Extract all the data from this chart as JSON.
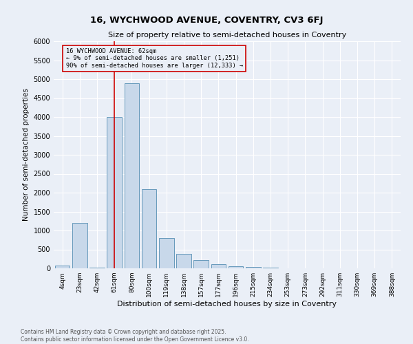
{
  "title1": "16, WYCHWOOD AVENUE, COVENTRY, CV3 6FJ",
  "title2": "Size of property relative to semi-detached houses in Coventry",
  "xlabel": "Distribution of semi-detached houses by size in Coventry",
  "ylabel": "Number of semi-detached properties",
  "bar_labels": [
    "4sqm",
    "23sqm",
    "42sqm",
    "61sqm",
    "80sqm",
    "100sqm",
    "119sqm",
    "138sqm",
    "157sqm",
    "177sqm",
    "196sqm",
    "215sqm",
    "234sqm",
    "253sqm",
    "273sqm",
    "292sqm",
    "311sqm",
    "330sqm",
    "369sqm",
    "388sqm"
  ],
  "bar_values": [
    75,
    1200,
    10,
    4000,
    4900,
    2100,
    800,
    375,
    225,
    110,
    55,
    30,
    15,
    8,
    4,
    2,
    1,
    1,
    1,
    0
  ],
  "bar_color": "#c8d8ea",
  "bar_edge_color": "#6699bb",
  "property_label": "16 WYCHWOOD AVENUE: 62sqm",
  "pct_smaller": 9,
  "pct_larger": 90,
  "n_smaller": 1251,
  "n_larger": 12333,
  "vline_x_index": 3,
  "vline_color": "#cc0000",
  "annotation_box_color": "#cc0000",
  "ylim": [
    0,
    6000
  ],
  "yticks": [
    0,
    500,
    1000,
    1500,
    2000,
    2500,
    3000,
    3500,
    4000,
    4500,
    5000,
    5500,
    6000
  ],
  "bg_color": "#eaeff7",
  "grid_color": "#ffffff",
  "footnote": "Contains HM Land Registry data © Crown copyright and database right 2025.\nContains public sector information licensed under the Open Government Licence v3.0."
}
